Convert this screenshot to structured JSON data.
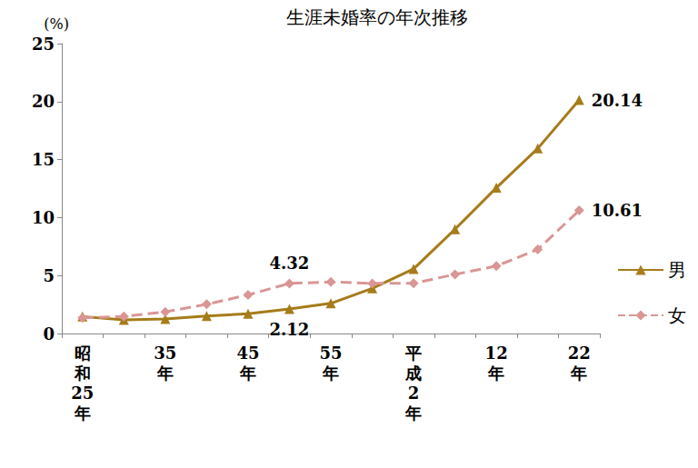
{
  "chart_data": {
    "type": "line",
    "title": "生涯未婚率の年次推移",
    "y_label": "(%)",
    "categories": [
      "昭和25年",
      null,
      "35年",
      null,
      "45年",
      null,
      "55年",
      null,
      "平成2年",
      null,
      "12年",
      null,
      "22年"
    ],
    "series": [
      {
        "name": "男",
        "color": "#a67c1a",
        "marker": "triangle",
        "line_style": "solid",
        "values": [
          1.46,
          1.18,
          1.26,
          1.5,
          1.7,
          2.12,
          2.6,
          3.89,
          5.57,
          8.99,
          12.57,
          15.96,
          20.14
        ],
        "value_labels": [
          null,
          null,
          null,
          null,
          null,
          "2.12",
          null,
          null,
          null,
          null,
          null,
          null,
          "20.14"
        ]
      },
      {
        "name": "女",
        "color": "#d99694",
        "marker": "diamond",
        "line_style": "dashed",
        "values": [
          1.35,
          1.47,
          1.87,
          2.52,
          3.33,
          4.32,
          4.45,
          4.32,
          4.33,
          5.1,
          5.82,
          7.25,
          10.61
        ],
        "value_labels": [
          null,
          null,
          null,
          null,
          null,
          "4.32",
          null,
          null,
          null,
          null,
          null,
          null,
          "10.61"
        ]
      }
    ],
    "ylim": [
      0,
      25
    ],
    "yticks": [
      0,
      5,
      10,
      15,
      20,
      25
    ],
    "grid": false,
    "legend": "right",
    "data_labels": true
  }
}
